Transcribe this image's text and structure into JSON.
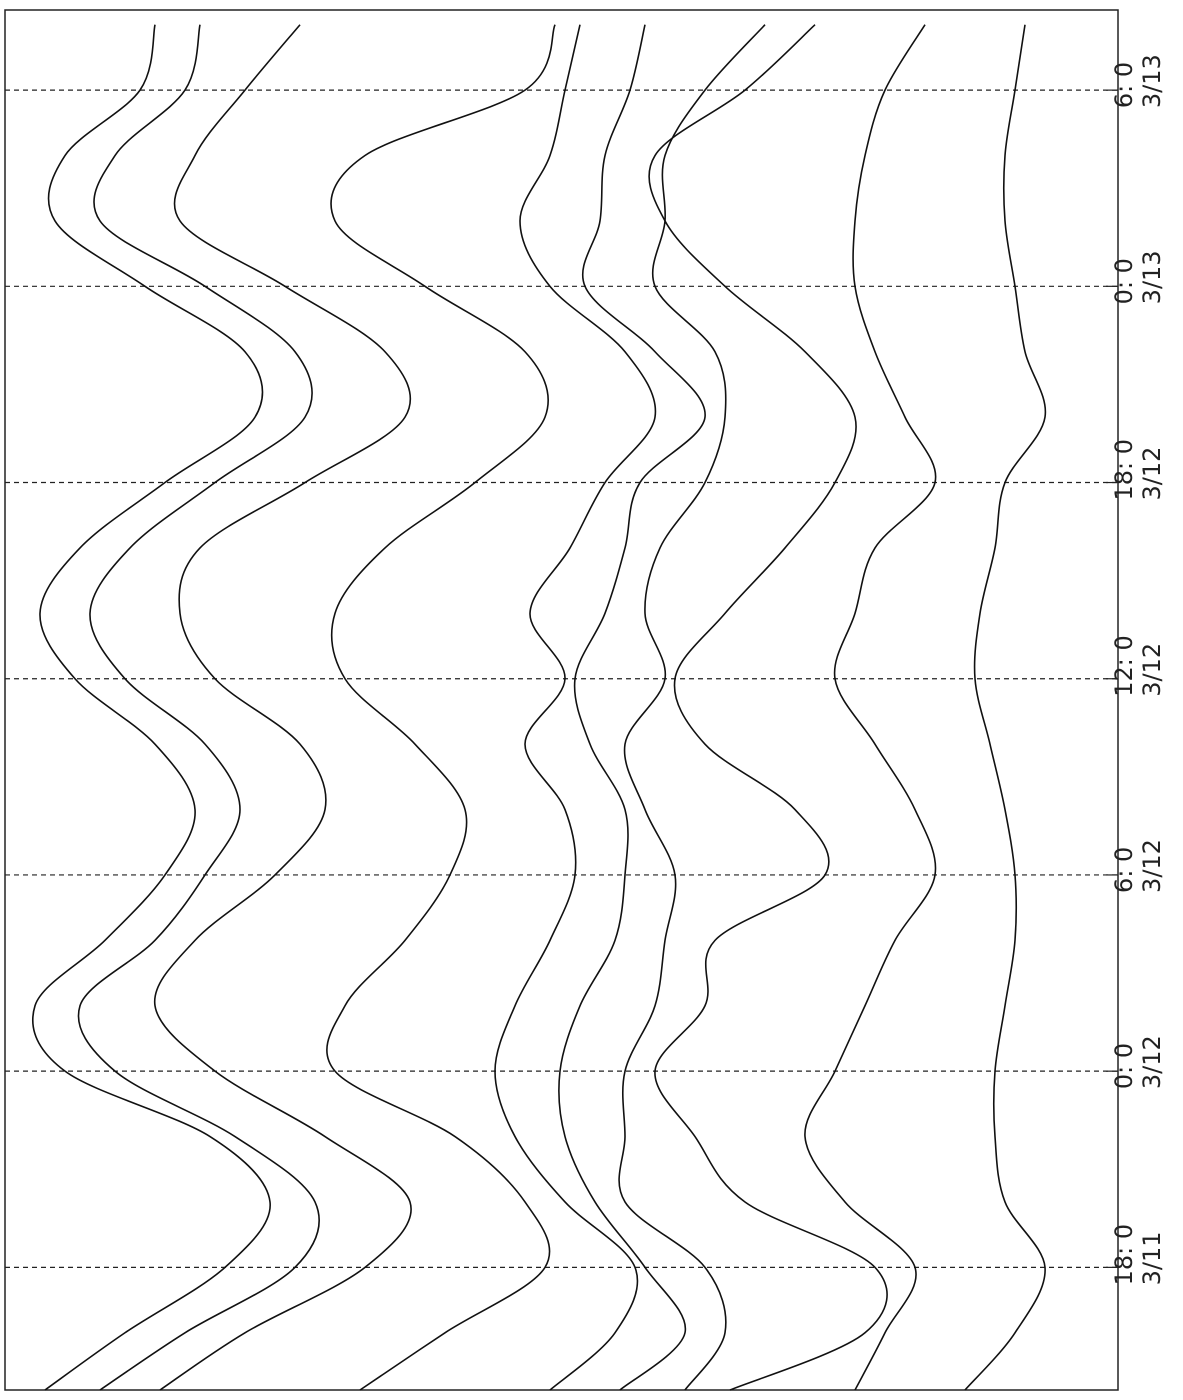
{
  "chart_data": {
    "type": "line",
    "x": [
      14.25,
      16,
      18,
      20,
      22,
      24,
      26,
      28,
      30,
      32,
      34,
      36,
      38,
      40,
      42,
      44,
      46,
      48,
      50,
      52,
      54,
      56
    ],
    "xlim": [
      14.25,
      56.45
    ],
    "xticks": [
      {
        "value": 18,
        "label": "18: 0\n3/11"
      },
      {
        "value": 24,
        "label": "0: 0\n3/12"
      },
      {
        "value": 30,
        "label": "6: 0\n3/12"
      },
      {
        "value": 36,
        "label": "12: 0\n3/12"
      },
      {
        "value": 42,
        "label": "18: 0\n3/12"
      },
      {
        "value": 48,
        "label": "0: 0\n3/13"
      },
      {
        "value": 54,
        "label": "6: 0\n3/13"
      }
    ],
    "ylim": [
      0,
      1113
    ],
    "grid": true,
    "color": "#111",
    "series": [
      {
        "values": [
          40,
          120,
          220,
          265,
          205,
          60,
          30,
          100,
          160,
          190,
          150,
          70,
          35,
          75,
          160,
          250,
          240,
          140,
          50,
          60,
          135,
          150
        ]
      },
      {
        "values": [
          95,
          180,
          290,
          310,
          230,
          110,
          75,
          150,
          200,
          235,
          200,
          120,
          85,
          125,
          210,
          300,
          290,
          200,
          95,
          110,
          180,
          195
        ]
      },
      {
        "values": [
          155,
          240,
          360,
          405,
          320,
          210,
          150,
          190,
          270,
          320,
          295,
          210,
          175,
          195,
          300,
          400,
          380,
          280,
          175,
          190,
          240,
          295
        ]
      },
      {
        "values": [
          355,
          440,
          540,
          520,
          450,
          330,
          340,
          400,
          445,
          460,
          410,
          340,
          330,
          380,
          470,
          540,
          520,
          420,
          330,
          360,
          520,
          550
        ]
      },
      {
        "values": [
          545,
          610,
          630,
          560,
          510,
          490,
          510,
          545,
          570,
          560,
          520,
          560,
          525,
          565,
          600,
          650,
          620,
          545,
          515,
          545,
          560,
          575
        ]
      },
      {
        "values": [
          615,
          680,
          640,
          590,
          560,
          555,
          575,
          610,
          620,
          620,
          585,
          570,
          600,
          620,
          635,
          700,
          650,
          580,
          595,
          600,
          625,
          640
        ]
      },
      {
        "values": [
          680,
          720,
          700,
          620,
          620,
          620,
          650,
          660,
          670,
          640,
          620,
          660,
          640,
          655,
          700,
          720,
          710,
          650,
          660,
          660,
          700,
          760
        ]
      },
      {
        "values": [
          725,
          860,
          870,
          740,
          690,
          650,
          700,
          710,
          820,
          790,
          700,
          670,
          720,
          780,
          830,
          850,
          800,
          720,
          660,
          650,
          740,
          810
        ]
      },
      {
        "values": [
          850,
          880,
          910,
          840,
          800,
          830,
          860,
          890,
          930,
          910,
          870,
          830,
          850,
          870,
          930,
          900,
          870,
          850,
          850,
          860,
          880,
          920
        ]
      },
      {
        "values": [
          960,
          1010,
          1040,
          1000,
          990,
          990,
          1000,
          1010,
          1010,
          1000,
          985,
          970,
          975,
          990,
          1000,
          1040,
          1020,
          1010,
          1000,
          1000,
          1010,
          1020
        ]
      }
    ]
  }
}
